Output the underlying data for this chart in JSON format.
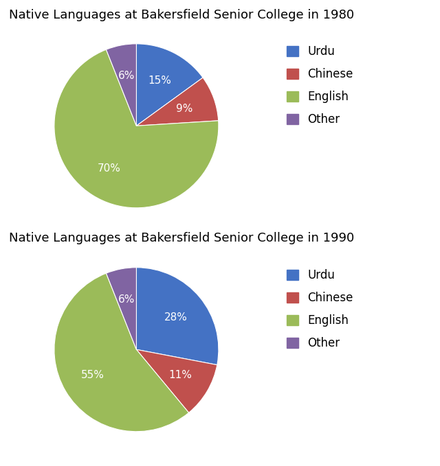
{
  "charts": [
    {
      "title": "Native Languages at Bakersfield Senior College in 1980",
      "labels": [
        "Urdu",
        "Chinese",
        "English",
        "Other"
      ],
      "values": [
        15,
        9,
        70,
        6
      ],
      "colors": [
        "#4472c4",
        "#c0504d",
        "#9bbb59",
        "#8064a2"
      ],
      "pct_labels": [
        "15%",
        "9%",
        "70%",
        "6%"
      ]
    },
    {
      "title": "Native Languages at Bakersfield Senior College in 1990",
      "labels": [
        "Urdu",
        "Chinese",
        "English",
        "Other"
      ],
      "values": [
        28,
        11,
        55,
        6
      ],
      "colors": [
        "#4472c4",
        "#c0504d",
        "#9bbb59",
        "#8064a2"
      ],
      "pct_labels": [
        "28%",
        "11%",
        "55%",
        "6%"
      ]
    }
  ],
  "legend_labels": [
    "Urdu",
    "Chinese",
    "English",
    "Other"
  ],
  "legend_colors": [
    "#4472c4",
    "#c0504d",
    "#9bbb59",
    "#8064a2"
  ],
  "bg_color": "#ffffff",
  "text_color": "#000000",
  "title_fontsize": 13,
  "label_fontsize": 11,
  "legend_fontsize": 12
}
